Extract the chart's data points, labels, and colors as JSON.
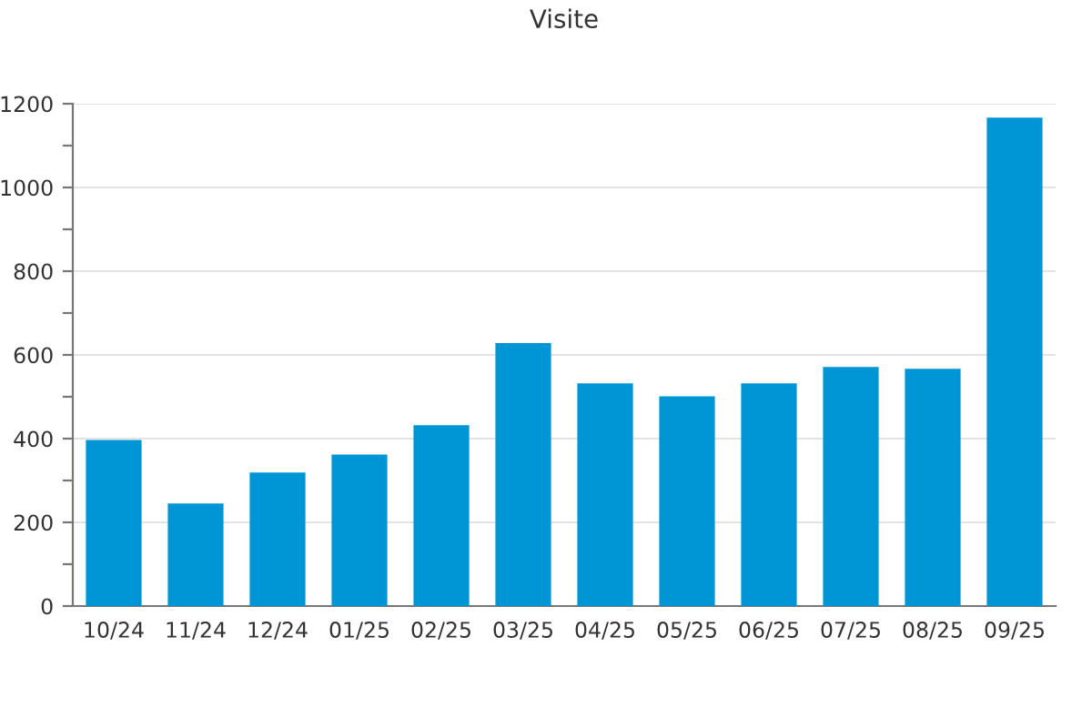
{
  "chart_data": {
    "type": "bar",
    "title": "Visite",
    "categories": [
      "10/24",
      "11/24",
      "12/24",
      "01/25",
      "02/25",
      "03/25",
      "04/25",
      "05/25",
      "06/25",
      "07/25",
      "08/25",
      "09/25"
    ],
    "values": [
      397,
      245,
      319,
      362,
      432,
      628,
      532,
      501,
      532,
      571,
      567,
      1167
    ],
    "color": "#0096d6",
    "ylim": [
      0,
      1200
    ],
    "yticks": [
      0,
      {
        "value": 100,
        "label": null
      },
      200,
      {
        "value": 300,
        "label": null
      },
      400,
      {
        "value": 500,
        "label": null
      },
      600,
      {
        "value": 700,
        "label": null
      },
      800,
      {
        "value": 900,
        "label": null
      },
      1000,
      {
        "value": 1100,
        "label": null
      },
      1200
    ],
    "grid": "y"
  }
}
